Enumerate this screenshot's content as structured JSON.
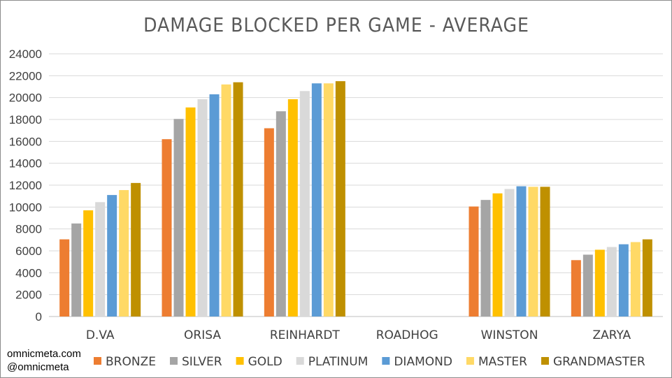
{
  "credits": {
    "site": "omnicmeta.com",
    "handle": "@omnicmeta"
  },
  "chart_data": {
    "type": "bar",
    "title": "DAMAGE BLOCKED PER GAME - AVERAGE",
    "xlabel": "",
    "ylabel": "",
    "ylim": [
      0,
      24000
    ],
    "yticks": [
      0,
      2000,
      4000,
      6000,
      8000,
      10000,
      12000,
      14000,
      16000,
      18000,
      20000,
      22000,
      24000
    ],
    "grid": true,
    "legend_position": "bottom",
    "categories": [
      "D.VA",
      "ORISA",
      "REINHARDT",
      "ROADHOG",
      "WINSTON",
      "ZARYA"
    ],
    "series": [
      {
        "name": "BRONZE",
        "color": "#ED7D31",
        "values": [
          7050,
          16200,
          17200,
          0,
          10050,
          5150
        ]
      },
      {
        "name": "SILVER",
        "color": "#A5A5A5",
        "values": [
          8500,
          18050,
          18750,
          0,
          10650,
          5650
        ]
      },
      {
        "name": "GOLD",
        "color": "#FFC000",
        "values": [
          9700,
          19100,
          19850,
          0,
          11250,
          6100
        ]
      },
      {
        "name": "PLATINUM",
        "color": "#D9D9D9",
        "values": [
          10450,
          19850,
          20600,
          0,
          11650,
          6350
        ]
      },
      {
        "name": "DIAMOND",
        "color": "#5B9BD5",
        "values": [
          11100,
          20300,
          21300,
          0,
          11900,
          6600
        ]
      },
      {
        "name": "MASTER",
        "color": "#FFD966",
        "values": [
          11550,
          21200,
          21300,
          0,
          11850,
          6800
        ]
      },
      {
        "name": "GRANDMASTER",
        "color": "#BF9000",
        "values": [
          12200,
          21400,
          21500,
          0,
          11850,
          7050
        ]
      }
    ]
  }
}
